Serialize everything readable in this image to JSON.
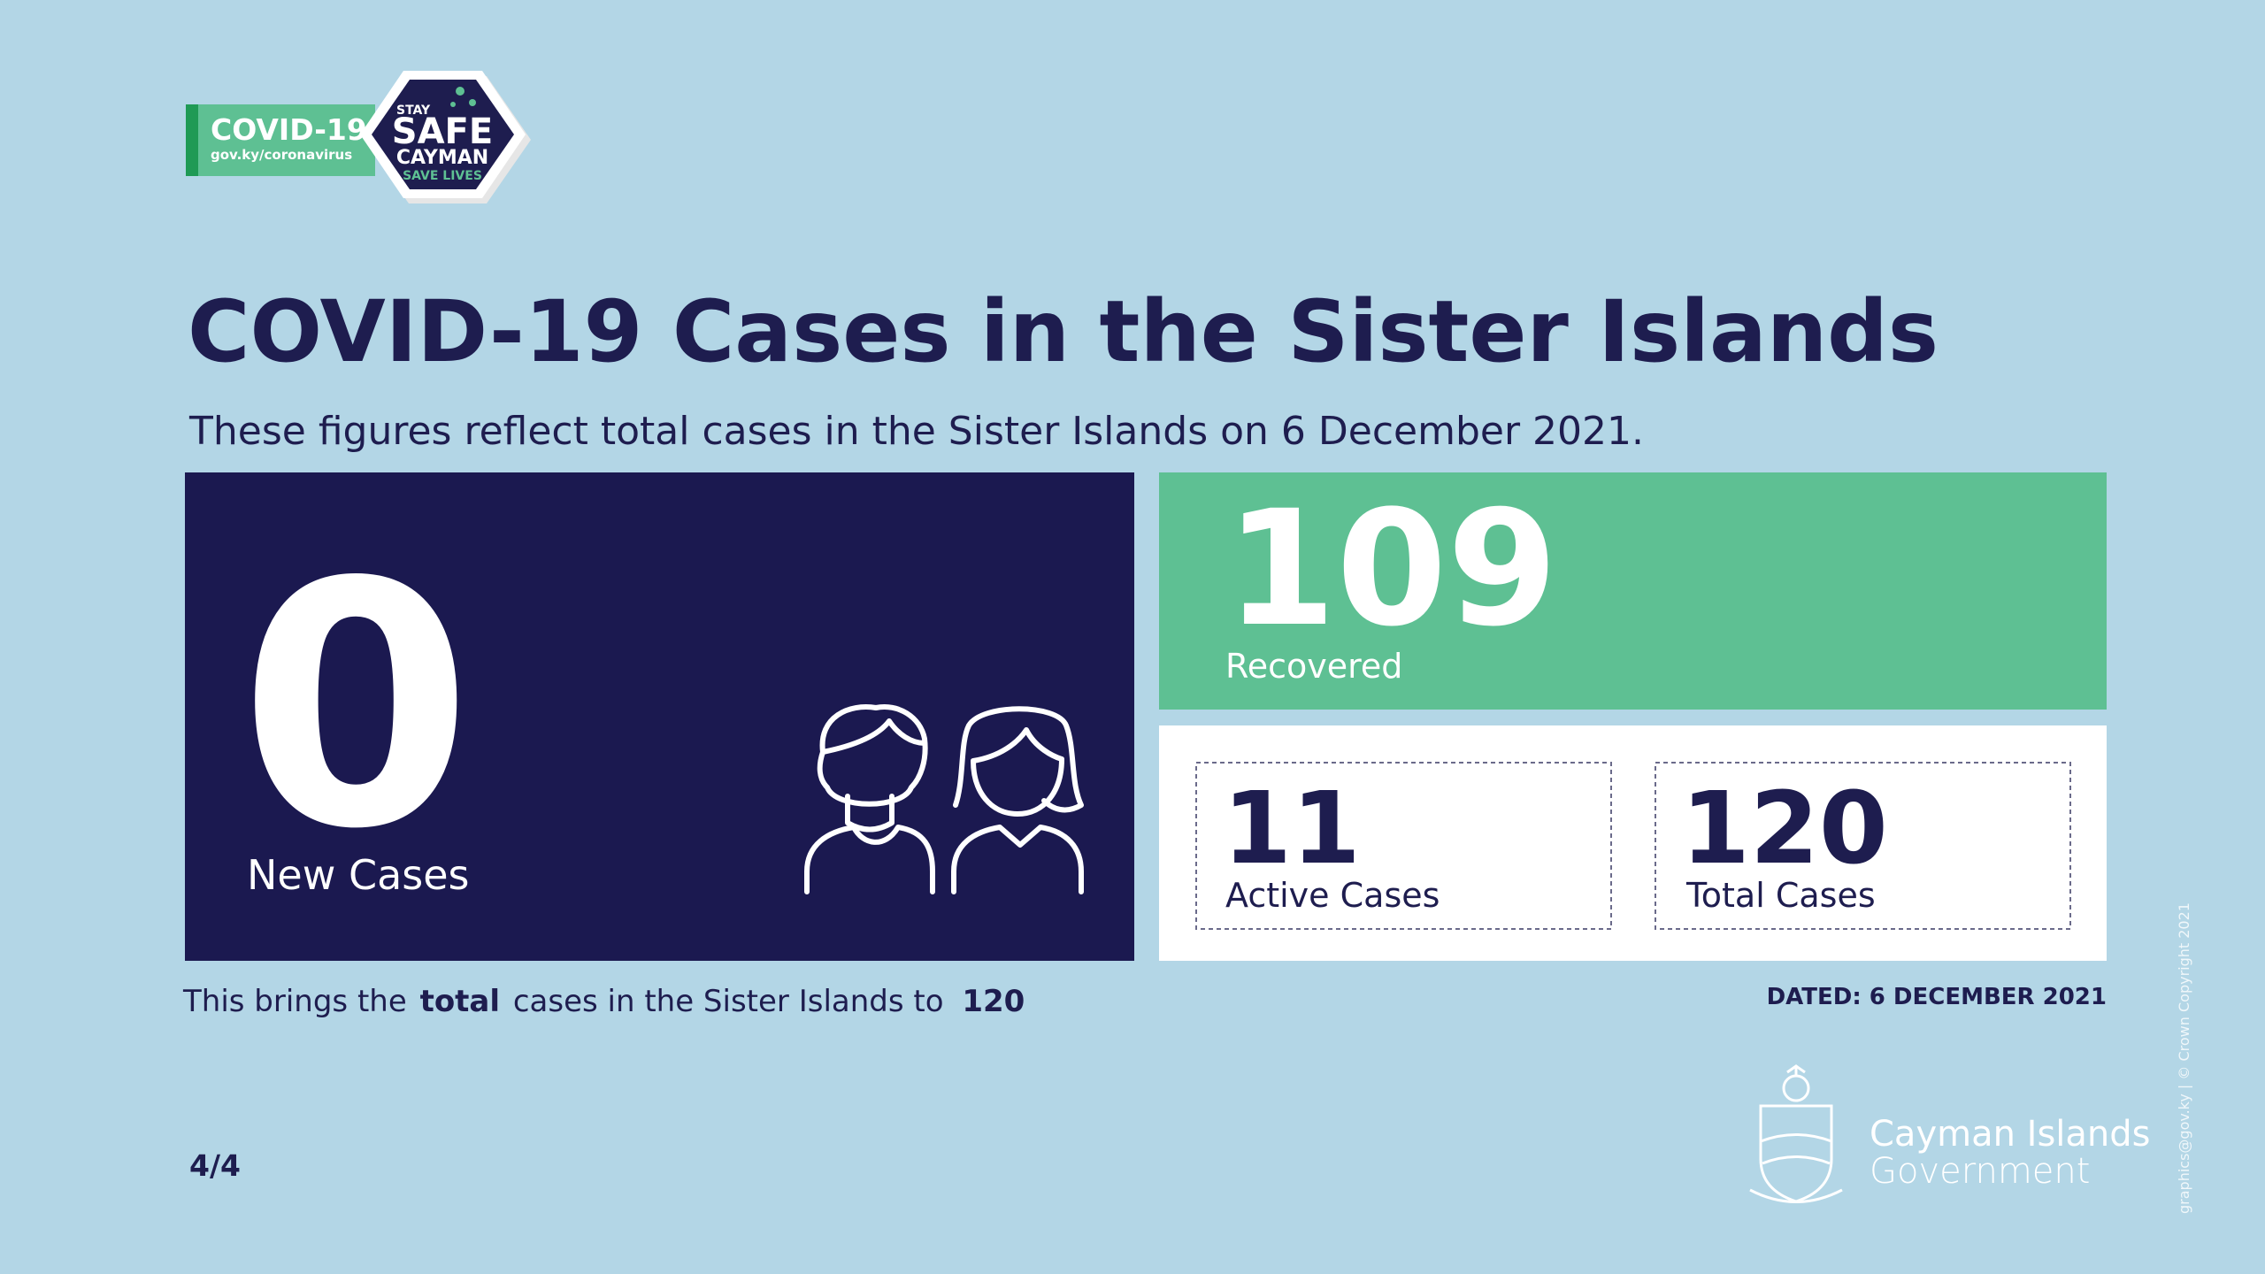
{
  "logo": {
    "badge": "COVID-19",
    "url": "gov.ky/coronavirus",
    "stay": "STAY",
    "safe": "SAFE",
    "cayman": "CAYMAN",
    "save_lives": "SAVE LIVES"
  },
  "header": {
    "title": "COVID-19 Cases in the Sister Islands",
    "subtitle": "These figures reflect total cases in the Sister Islands on 6 December 2021."
  },
  "stats": {
    "new_cases": {
      "value": 0,
      "label": "New Cases"
    },
    "recovered": {
      "value": 109,
      "label": "Recovered"
    },
    "active": {
      "value": 11,
      "label": "Active Cases"
    },
    "total": {
      "value": 120,
      "label": "Total Cases"
    }
  },
  "summary": {
    "lead": "This brings the",
    "emphasis": "total",
    "rest": "cases in the Sister Islands to",
    "value": 120
  },
  "dated": "DATED: 6 DECEMBER 2021",
  "page": "4/4",
  "government": {
    "line1": "Cayman Islands",
    "line2": "Government"
  },
  "credit": "graphics@gov.ky | © Crown Copyright 2021"
}
